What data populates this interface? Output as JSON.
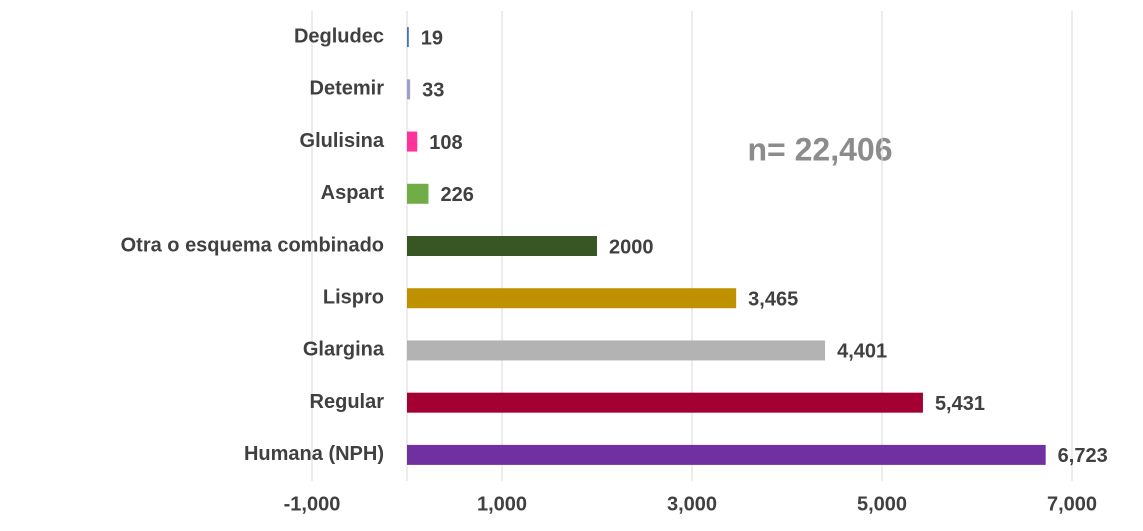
{
  "chart_data": {
    "type": "barh",
    "annotation": "n= 22,406",
    "categories": [
      "Degludec",
      "Detemir",
      "Glulisina",
      "Aspart",
      "Otra o esquema combinado",
      "Lispro",
      "Glargina",
      "Regular",
      "Humana (NPH)"
    ],
    "values": [
      19,
      33,
      108,
      226,
      2000,
      3465,
      4401,
      5431,
      6723
    ],
    "value_labels": [
      "19",
      "33",
      "108",
      "226",
      "2000",
      "3,465",
      "4,401",
      "5,431",
      "6,723"
    ],
    "colors": [
      "#4472c4",
      "#9e9ec8",
      "#ff3399",
      "#70ad47",
      "#375623",
      "#bf9000",
      "#b3b3b3",
      "#a50034",
      "#7030a0"
    ],
    "xlim": [
      -1000,
      7000
    ],
    "xticks": [
      {
        "value": -1000,
        "label": "-1,000"
      },
      {
        "value": 1000,
        "label": "1,000"
      },
      {
        "value": 3000,
        "label": "3,000"
      },
      {
        "value": 5000,
        "label": "5,000"
      },
      {
        "value": 7000,
        "label": "7,000"
      }
    ],
    "grid": true
  }
}
